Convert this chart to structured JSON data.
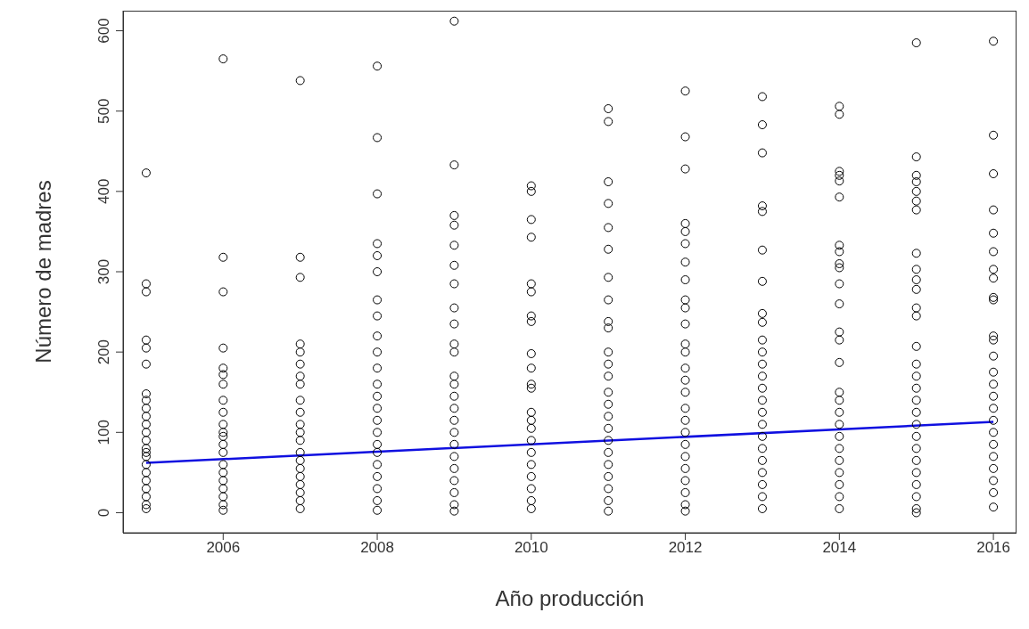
{
  "chart_data": {
    "type": "scatter",
    "xlabel": "Año producción",
    "ylabel": "Número de madres",
    "xlim": [
      2004.7,
      2016.3
    ],
    "ylim": [
      -25,
      625
    ],
    "xticks": [
      2006,
      2008,
      2010,
      2012,
      2014,
      2016
    ],
    "yticks": [
      0,
      100,
      200,
      300,
      400,
      500,
      600
    ],
    "series": [
      {
        "marker": "circle",
        "color": "#000000",
        "x": [
          2005,
          2005,
          2005,
          2005,
          2005,
          2005,
          2005,
          2005,
          2005,
          2005,
          2005,
          2005,
          2005,
          2005,
          2005,
          2005,
          2005,
          2005,
          2005,
          2005,
          2005,
          2005,
          2005,
          2006,
          2006,
          2006,
          2006,
          2006,
          2006,
          2006,
          2006,
          2006,
          2006,
          2006,
          2006,
          2006,
          2006,
          2006,
          2006,
          2006,
          2006,
          2006,
          2006,
          2006,
          2007,
          2007,
          2007,
          2007,
          2007,
          2007,
          2007,
          2007,
          2007,
          2007,
          2007,
          2007,
          2007,
          2007,
          2007,
          2007,
          2007,
          2007,
          2007,
          2007,
          2007,
          2008,
          2008,
          2008,
          2008,
          2008,
          2008,
          2008,
          2008,
          2008,
          2008,
          2008,
          2008,
          2008,
          2008,
          2008,
          2008,
          2008,
          2008,
          2008,
          2008,
          2008,
          2008,
          2008,
          2009,
          2009,
          2009,
          2009,
          2009,
          2009,
          2009,
          2009,
          2009,
          2009,
          2009,
          2009,
          2009,
          2009,
          2009,
          2009,
          2009,
          2009,
          2009,
          2009,
          2009,
          2009,
          2009,
          2009,
          2010,
          2010,
          2010,
          2010,
          2010,
          2010,
          2010,
          2010,
          2010,
          2010,
          2010,
          2010,
          2010,
          2010,
          2010,
          2010,
          2010,
          2010,
          2010,
          2010,
          2010,
          2010,
          2011,
          2011,
          2011,
          2011,
          2011,
          2011,
          2011,
          2011,
          2011,
          2011,
          2011,
          2011,
          2011,
          2011,
          2011,
          2011,
          2011,
          2011,
          2011,
          2011,
          2011,
          2011,
          2011,
          2011,
          2012,
          2012,
          2012,
          2012,
          2012,
          2012,
          2012,
          2012,
          2012,
          2012,
          2012,
          2012,
          2012,
          2012,
          2012,
          2012,
          2012,
          2012,
          2012,
          2012,
          2012,
          2012,
          2012,
          2012,
          2012,
          2012,
          2013,
          2013,
          2013,
          2013,
          2013,
          2013,
          2013,
          2013,
          2013,
          2013,
          2013,
          2013,
          2013,
          2013,
          2013,
          2013,
          2013,
          2013,
          2013,
          2013,
          2013,
          2013,
          2013,
          2013,
          2014,
          2014,
          2014,
          2014,
          2014,
          2014,
          2014,
          2014,
          2014,
          2014,
          2014,
          2014,
          2014,
          2014,
          2014,
          2014,
          2014,
          2014,
          2014,
          2014,
          2014,
          2014,
          2014,
          2014,
          2014,
          2014,
          2015,
          2015,
          2015,
          2015,
          2015,
          2015,
          2015,
          2015,
          2015,
          2015,
          2015,
          2015,
          2015,
          2015,
          2015,
          2015,
          2015,
          2015,
          2015,
          2015,
          2015,
          2015,
          2015,
          2015,
          2015,
          2015,
          2015,
          2015,
          2016,
          2016,
          2016,
          2016,
          2016,
          2016,
          2016,
          2016,
          2016,
          2016,
          2016,
          2016,
          2016,
          2016,
          2016,
          2016,
          2016,
          2016,
          2016,
          2016,
          2016,
          2016,
          2016,
          2016,
          2016
        ],
        "values": [
          423,
          285,
          275,
          215,
          205,
          185,
          148,
          140,
          130,
          120,
          110,
          100,
          90,
          80,
          75,
          70,
          60,
          50,
          40,
          30,
          20,
          10,
          5,
          565,
          318,
          275,
          205,
          180,
          172,
          160,
          140,
          125,
          110,
          100,
          95,
          85,
          75,
          60,
          50,
          40,
          30,
          20,
          10,
          3,
          538,
          318,
          293,
          210,
          200,
          185,
          170,
          160,
          140,
          125,
          110,
          100,
          90,
          75,
          65,
          55,
          45,
          35,
          25,
          15,
          5,
          556,
          467,
          397,
          335,
          320,
          300,
          265,
          245,
          220,
          200,
          180,
          160,
          145,
          130,
          115,
          100,
          85,
          75,
          60,
          45,
          30,
          15,
          3,
          612,
          433,
          370,
          358,
          333,
          308,
          285,
          255,
          235,
          210,
          200,
          170,
          160,
          145,
          130,
          115,
          100,
          85,
          70,
          55,
          40,
          25,
          10,
          2,
          407,
          400,
          365,
          343,
          285,
          275,
          245,
          238,
          198,
          180,
          160,
          155,
          125,
          115,
          105,
          90,
          75,
          60,
          45,
          30,
          15,
          5,
          503,
          487,
          412,
          385,
          355,
          328,
          293,
          265,
          238,
          230,
          200,
          185,
          170,
          150,
          135,
          120,
          105,
          90,
          75,
          60,
          45,
          30,
          15,
          2,
          525,
          468,
          428,
          360,
          350,
          335,
          312,
          290,
          265,
          255,
          235,
          210,
          200,
          180,
          165,
          150,
          130,
          115,
          100,
          85,
          70,
          55,
          40,
          25,
          10,
          2,
          518,
          483,
          448,
          382,
          375,
          327,
          288,
          248,
          237,
          215,
          200,
          185,
          170,
          155,
          140,
          125,
          110,
          95,
          80,
          65,
          50,
          35,
          20,
          5,
          506,
          496,
          425,
          420,
          413,
          393,
          333,
          325,
          310,
          305,
          285,
          260,
          225,
          215,
          187,
          150,
          140,
          125,
          110,
          95,
          80,
          65,
          50,
          35,
          20,
          5,
          585,
          443,
          420,
          412,
          400,
          388,
          377,
          323,
          303,
          290,
          278,
          255,
          245,
          207,
          185,
          170,
          155,
          140,
          125,
          110,
          95,
          80,
          65,
          50,
          35,
          20,
          5,
          0,
          587,
          470,
          422,
          377,
          348,
          325,
          303,
          292,
          268,
          265,
          220,
          215,
          195,
          175,
          160,
          145,
          130,
          115,
          100,
          85,
          70,
          55,
          40,
          25,
          7
        ]
      },
      {
        "type": "line",
        "color": "#1010e0",
        "x": [
          2005,
          2016
        ],
        "values": [
          62,
          113
        ]
      }
    ]
  }
}
